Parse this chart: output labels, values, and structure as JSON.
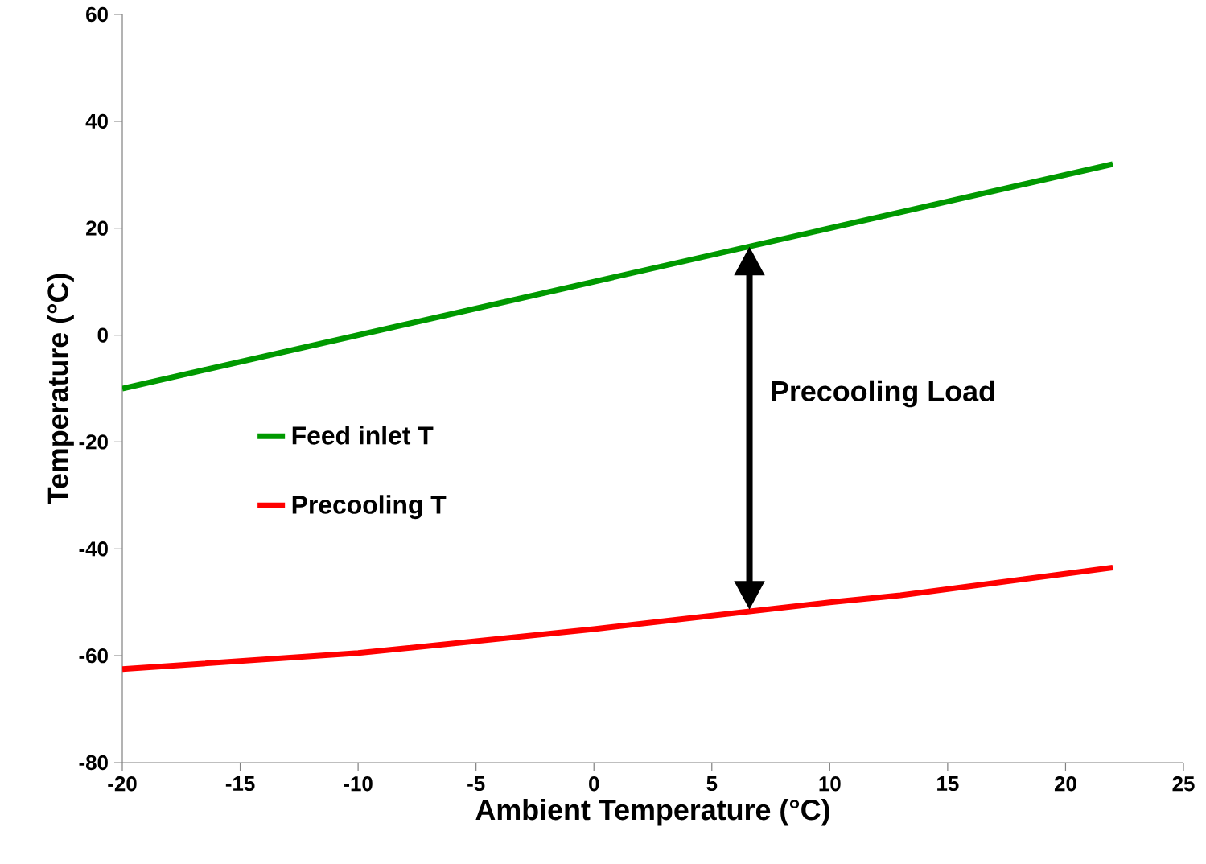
{
  "chart_data": {
    "type": "line",
    "xlabel": "Ambient Temperature (°C)",
    "ylabel": "Temperature (°C)",
    "series": [
      {
        "name": "Feed inlet T",
        "color": "#009900",
        "x": [
          -20,
          22
        ],
        "values": [
          -10,
          32
        ]
      },
      {
        "name": "Precooling T",
        "color": "#ff0000",
        "x": [
          -20,
          -10,
          0,
          10,
          13,
          22
        ],
        "values": [
          -62.5,
          -59.5,
          -55,
          -50,
          -48.7,
          -43.5
        ]
      }
    ],
    "xlim": [
      -20,
      25
    ],
    "ylim": [
      -80,
      60
    ],
    "xticks": [
      -20,
      -15,
      -10,
      -5,
      0,
      5,
      10,
      15,
      20,
      25
    ],
    "yticks": [
      -80,
      -60,
      -40,
      -20,
      0,
      20,
      40,
      60
    ],
    "annotations": [
      "Precooling Load"
    ],
    "grid": false,
    "legend": "left",
    "marker": "none",
    "line_style": "solid"
  }
}
